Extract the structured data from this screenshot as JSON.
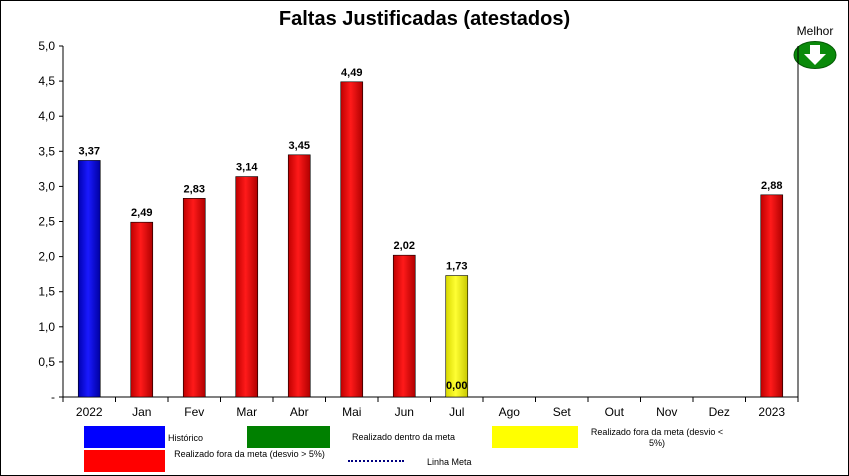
{
  "chart_data": {
    "type": "bar",
    "title": "Faltas Justificadas (atestados)",
    "better_label": "Melhor",
    "better_direction": "down",
    "categories": [
      "2022",
      "Jan",
      "Fev",
      "Mar",
      "Abr",
      "Mai",
      "Jun",
      "Jul",
      "Ago",
      "Set",
      "Out",
      "Nov",
      "Dez",
      "2023"
    ],
    "values": [
      3.37,
      2.49,
      2.83,
      3.14,
      3.45,
      4.49,
      2.02,
      1.73,
      null,
      null,
      null,
      null,
      null,
      2.88
    ],
    "value_labels": [
      "3,37",
      "2,49",
      "2,83",
      "3,14",
      "3,45",
      "4,49",
      "2,02",
      "1,73",
      "",
      "",
      "",
      "",
      "",
      "2,88"
    ],
    "bar_status": [
      "historico",
      "fora",
      "fora",
      "fora",
      "fora",
      "fora",
      "fora",
      "fora_5",
      "",
      "",
      "",
      "",
      "",
      "fora"
    ],
    "extra_label": {
      "category": "Jul",
      "text": "0,00"
    },
    "ylim": [
      0,
      5
    ],
    "y_ticks": [
      "-",
      "0,5",
      "1,0",
      "1,5",
      "2,0",
      "2,5",
      "3,0",
      "3,5",
      "4,0",
      "4,5",
      "5,0"
    ],
    "grid": false,
    "colors": {
      "historico": "#0000ff",
      "dentro": "#008000",
      "fora_5": "#ffff00",
      "fora": "#ff0000",
      "meta": "#000080"
    },
    "legend": [
      {
        "key": "historico",
        "label": "Histórico"
      },
      {
        "key": "dentro",
        "label": "Realizado dentro da meta"
      },
      {
        "key": "fora_5",
        "label": "Realizado fora da meta (desvio < 5%)"
      },
      {
        "key": "fora",
        "label": "Realizado fora da meta (desvio > 5%)"
      },
      {
        "key": "meta",
        "label": "Linha Meta"
      }
    ]
  }
}
